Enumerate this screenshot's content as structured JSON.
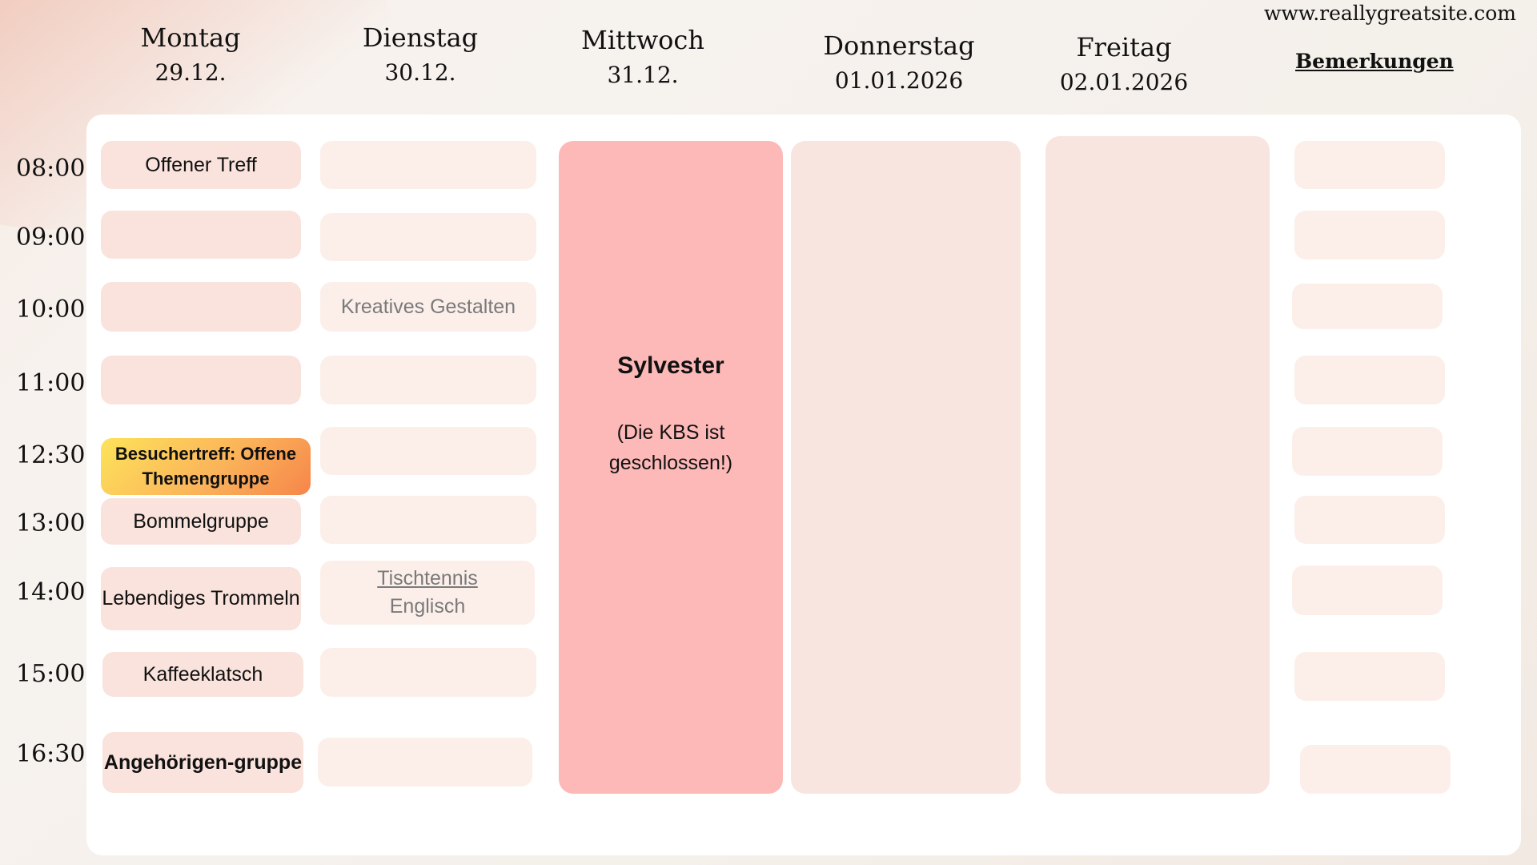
{
  "site": "www.reallygreatsite.com",
  "days": [
    {
      "name": "Montag",
      "date": "29.12."
    },
    {
      "name": "Dienstag",
      "date": "30.12."
    },
    {
      "name": "Mittwoch",
      "date": "31.12."
    },
    {
      "name": "Donnerstag",
      "date": "01.01.2026"
    },
    {
      "name": "Freitag",
      "date": "02.01.2026"
    }
  ],
  "remarks_header": "Bemerkungen",
  "times": [
    "08:00",
    "09:00",
    "10:00",
    "11:00",
    "12:30",
    "13:00",
    "14:00",
    "15:00",
    "16:30"
  ],
  "monday": {
    "slot_0800": "Offener Treff",
    "slot_1230": "Besuchertreff: Offene Themengruppe",
    "slot_1300": "Bommelgruppe",
    "slot_1400": "Lebendiges Trommeln",
    "slot_1500": "Kaffeeklatsch",
    "slot_1630": "Angehörigen-gruppe"
  },
  "tuesday": {
    "slot_1000": "Kreatives Gestalten",
    "slot_1400_a": "Tischtennis",
    "slot_1400_b": "Englisch"
  },
  "wednesday": {
    "title": "Sylvester",
    "note": "(Die KBS ist geschlossen!)"
  },
  "colors": {
    "monday_slot": "#f9e3dc",
    "tuesday_slot": "#fcefea",
    "wednesday_block": "#fcb9b8",
    "closed_block": "#f9e5df",
    "highlight_start": "#fde35a",
    "highlight_end": "#f6854a"
  }
}
